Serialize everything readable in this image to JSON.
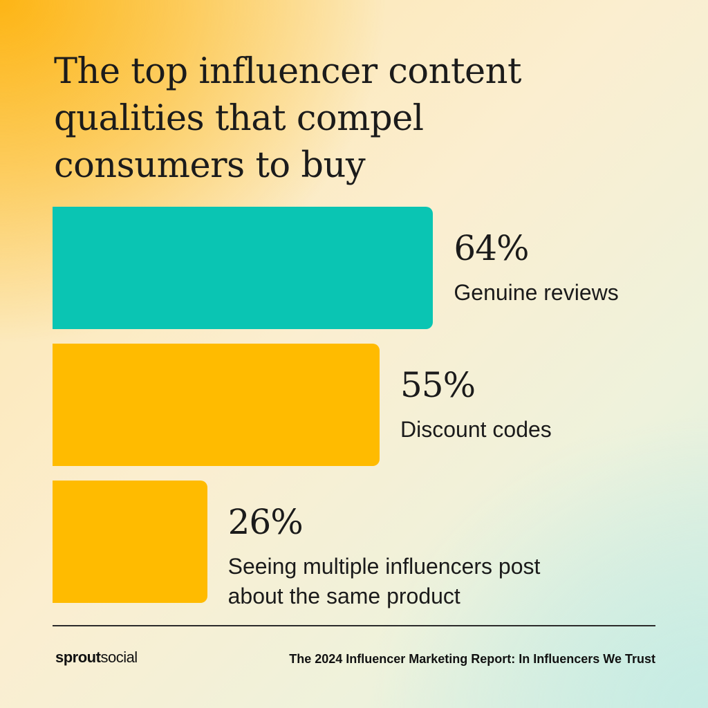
{
  "title_lines": [
    "The top influencer content",
    "qualities that compel",
    "consumers to buy"
  ],
  "chart_data": {
    "type": "bar",
    "orientation": "horizontal",
    "categories": [
      "Genuine reviews",
      "Discount codes",
      "Seeing multiple influencers post about the same product"
    ],
    "values": [
      64,
      55,
      26
    ],
    "value_labels": [
      "64%",
      "55%",
      "26%"
    ],
    "label_lines": [
      [
        "Genuine reviews"
      ],
      [
        "Discount codes"
      ],
      [
        "Seeing multiple influencers post",
        "about the same product"
      ]
    ],
    "colors": [
      "#0ac5b3",
      "#ffbb00",
      "#ffbb00"
    ],
    "unit": "%",
    "grid": false,
    "legend": "none"
  },
  "footer": {
    "brand_bold": "sprout",
    "brand_regular": "social",
    "source": "The 2024 Influencer Marketing Report: In Influencers We Trust"
  }
}
